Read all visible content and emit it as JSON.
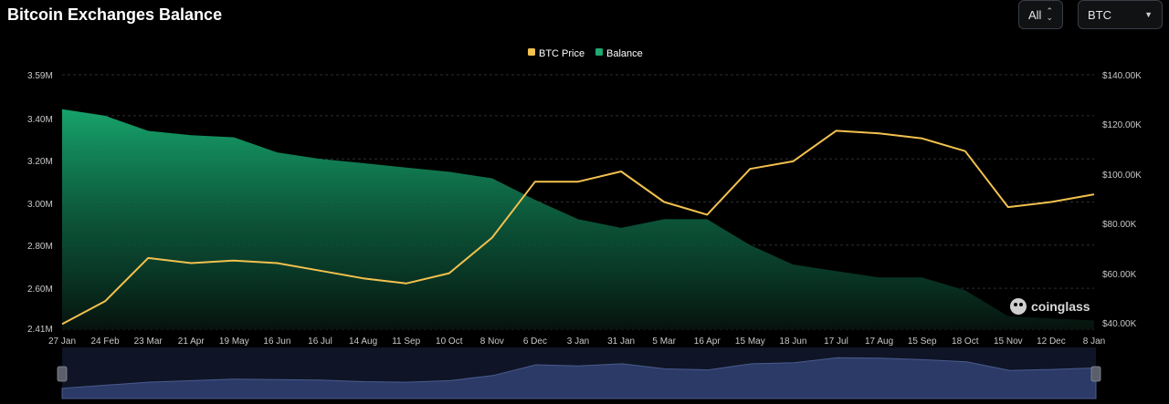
{
  "header": {
    "title": "Bitcoin Exchanges Balance"
  },
  "controls": {
    "range_label": "All",
    "asset_label": "BTC"
  },
  "watermark": {
    "text": "coinglass"
  },
  "colors": {
    "price": "#f2c14e",
    "balance": "#1fa870",
    "navigator": "#2b3a66"
  },
  "chart_data": {
    "type": "area",
    "legend": [
      "BTC Price",
      "Balance"
    ],
    "x_tick_labels": [
      "27 Jan",
      "24 Feb",
      "23 Mar",
      "21 Apr",
      "19 May",
      "16 Jun",
      "16 Jul",
      "14 Aug",
      "11 Sep",
      "10 Oct",
      "8 Nov",
      "6 Dec",
      "3 Jan",
      "31 Jan",
      "5 Mar",
      "16 Apr",
      "15 May",
      "18 Jun",
      "17 Jul",
      "17 Aug",
      "15 Sep",
      "18 Oct",
      "15 Nov",
      "12 Dec",
      "8 Jan"
    ],
    "left_axis": {
      "ticks": [
        "2.41M",
        "2.60M",
        "2.80M",
        "3.00M",
        "3.20M",
        "3.40M",
        "3.59M"
      ],
      "range": [
        2.41,
        3.59
      ],
      "unit": "M BTC"
    },
    "right_axis": {
      "ticks": [
        "$40.00K",
        "$60.00K",
        "$80.00K",
        "$100.00K",
        "$120.00K",
        "$140.00K"
      ],
      "range": [
        40,
        140
      ],
      "unit": "K USD"
    },
    "series": [
      {
        "name": "Balance",
        "axis": "left",
        "x": [
          "27 Jan",
          "24 Feb",
          "23 Mar",
          "21 Apr",
          "19 May",
          "16 Jun",
          "16 Jul",
          "14 Aug",
          "11 Sep",
          "10 Oct",
          "8 Nov",
          "6 Dec",
          "3 Jan",
          "31 Jan",
          "5 Mar",
          "16 Apr",
          "15 May",
          "18 Jun",
          "17 Jul",
          "17 Aug",
          "15 Sep",
          "18 Oct",
          "15 Nov",
          "12 Dec",
          "8 Jan"
        ],
        "values": [
          3.43,
          3.4,
          3.33,
          3.31,
          3.3,
          3.23,
          3.2,
          3.18,
          3.16,
          3.14,
          3.11,
          3.01,
          2.92,
          2.88,
          2.92,
          2.92,
          2.8,
          2.71,
          2.68,
          2.65,
          2.65,
          2.59,
          2.47,
          2.46,
          2.45
        ]
      },
      {
        "name": "BTC Price",
        "axis": "right",
        "x": [
          "27 Jan",
          "24 Feb",
          "23 Mar",
          "21 Apr",
          "19 May",
          "16 Jun",
          "16 Jul",
          "14 Aug",
          "11 Sep",
          "10 Oct",
          "8 Nov",
          "6 Dec",
          "3 Jan",
          "31 Jan",
          "5 Mar",
          "16 Apr",
          "15 May",
          "18 Jun",
          "17 Jul",
          "17 Aug",
          "15 Sep",
          "18 Oct",
          "15 Nov",
          "12 Dec",
          "8 Jan"
        ],
        "values": [
          42,
          51,
          68,
          66,
          67,
          66,
          63,
          60,
          58,
          62,
          76,
          98,
          98,
          102,
          90,
          85,
          103,
          106,
          118,
          117,
          115,
          110,
          88,
          90,
          93
        ]
      }
    ],
    "navigator_values": [
      0.2,
      0.26,
      0.32,
      0.35,
      0.38,
      0.37,
      0.36,
      0.33,
      0.32,
      0.35,
      0.45,
      0.66,
      0.64,
      0.68,
      0.58,
      0.56,
      0.68,
      0.7,
      0.8,
      0.79,
      0.76,
      0.72,
      0.55,
      0.57,
      0.6
    ],
    "grid": true,
    "legend_position": "top-center"
  }
}
